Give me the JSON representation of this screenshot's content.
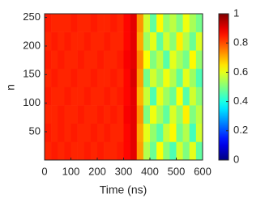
{
  "chart_data": {
    "type": "heatmap",
    "xlabel": "Time (ns)",
    "ylabel": "n",
    "xbins": [
      0,
      25,
      50,
      75,
      100,
      125,
      150,
      175,
      200,
      225,
      250,
      275,
      300,
      325,
      350,
      375,
      400,
      425,
      450,
      475,
      500,
      525,
      550,
      575,
      600
    ],
    "ybins": [
      0.5,
      32.5,
      64.5,
      96.5,
      128.5,
      160.5,
      192.5,
      224.5,
      256.5
    ],
    "z": [
      [
        0.84,
        0.85,
        0.84,
        0.85,
        0.84,
        0.84,
        0.85,
        0.84,
        0.85,
        0.84,
        0.84,
        0.85,
        0.87,
        0.9,
        0.72,
        0.55,
        0.48,
        0.62,
        0.51,
        0.45,
        0.58,
        0.5,
        0.6,
        0.47
      ],
      [
        0.85,
        0.84,
        0.85,
        0.84,
        0.85,
        0.84,
        0.84,
        0.85,
        0.84,
        0.85,
        0.84,
        0.84,
        0.87,
        0.9,
        0.71,
        0.6,
        0.52,
        0.46,
        0.57,
        0.63,
        0.49,
        0.55,
        0.44,
        0.58
      ],
      [
        0.84,
        0.84,
        0.85,
        0.84,
        0.84,
        0.85,
        0.84,
        0.84,
        0.85,
        0.84,
        0.85,
        0.84,
        0.88,
        0.9,
        0.73,
        0.5,
        0.61,
        0.54,
        0.47,
        0.59,
        0.52,
        0.64,
        0.5,
        0.56
      ],
      [
        0.85,
        0.84,
        0.84,
        0.85,
        0.84,
        0.84,
        0.85,
        0.84,
        0.84,
        0.85,
        0.84,
        0.85,
        0.87,
        0.9,
        0.7,
        0.57,
        0.45,
        0.6,
        0.53,
        0.48,
        0.62,
        0.46,
        0.58,
        0.51
      ],
      [
        0.84,
        0.85,
        0.84,
        0.84,
        0.85,
        0.84,
        0.84,
        0.85,
        0.84,
        0.84,
        0.85,
        0.84,
        0.87,
        0.91,
        0.72,
        0.49,
        0.58,
        0.52,
        0.61,
        0.55,
        0.47,
        0.6,
        0.53,
        0.45
      ],
      [
        0.85,
        0.84,
        0.85,
        0.84,
        0.84,
        0.85,
        0.84,
        0.84,
        0.85,
        0.84,
        0.84,
        0.85,
        0.88,
        0.9,
        0.74,
        0.62,
        0.5,
        0.56,
        0.46,
        0.6,
        0.54,
        0.49,
        0.63,
        0.52
      ],
      [
        0.84,
        0.85,
        0.84,
        0.85,
        0.84,
        0.84,
        0.85,
        0.84,
        0.84,
        0.85,
        0.84,
        0.84,
        0.87,
        0.9,
        0.71,
        0.53,
        0.6,
        0.47,
        0.58,
        0.51,
        0.64,
        0.55,
        0.48,
        0.59
      ],
      [
        0.85,
        0.84,
        0.84,
        0.84,
        0.85,
        0.84,
        0.84,
        0.85,
        0.84,
        0.84,
        0.85,
        0.84,
        0.87,
        0.9,
        0.73,
        0.58,
        0.47,
        0.63,
        0.52,
        0.56,
        0.5,
        0.61,
        0.54,
        0.49
      ]
    ],
    "xlim": [
      0,
      600
    ],
    "ylim": [
      0.5,
      256.5
    ],
    "xticks": [
      0,
      100,
      200,
      300,
      400,
      500,
      600
    ],
    "yticks": [
      50,
      100,
      150,
      200,
      250
    ],
    "colormap": "jet",
    "clim": [
      0,
      1
    ],
    "cticks": [
      0,
      0.2,
      0.4,
      0.6,
      0.8,
      1
    ]
  }
}
